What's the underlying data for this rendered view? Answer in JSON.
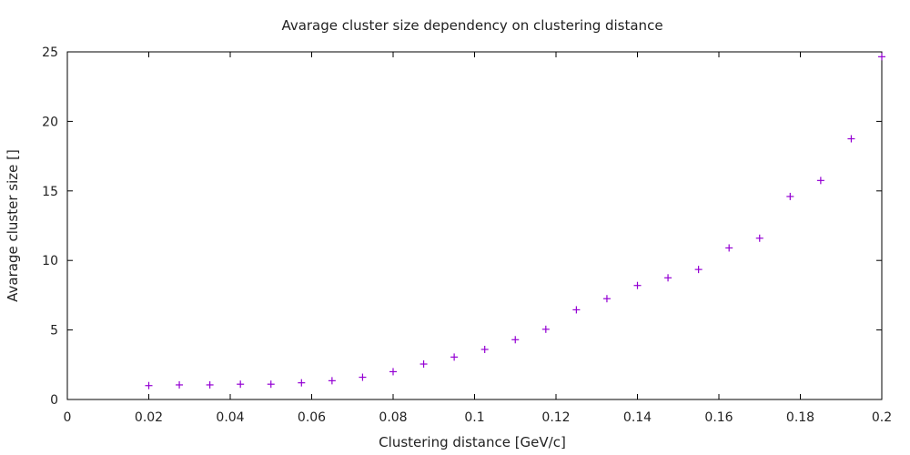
{
  "chart_data": {
    "type": "scatter",
    "title": "Avarage cluster size dependency on clustering distance",
    "xlabel": "Clustering distance [GeV/c]",
    "ylabel": "Avarage cluster size []",
    "xlim": [
      0,
      0.2
    ],
    "ylim": [
      0,
      25
    ],
    "x_ticks": [
      "0",
      "0.02",
      "0.04",
      "0.06",
      "0.08",
      "0.1",
      "0.12",
      "0.14",
      "0.16",
      "0.18",
      "0.2"
    ],
    "y_ticks": [
      "0",
      "5",
      "10",
      "15",
      "20",
      "25"
    ],
    "grid": false,
    "marker": "plus",
    "color": "#9400d3",
    "series": [
      {
        "x": [
          0.02,
          0.0275,
          0.035,
          0.0425,
          0.05,
          0.0575,
          0.065,
          0.0725,
          0.08,
          0.0875,
          0.095,
          0.1025,
          0.11,
          0.1175,
          0.125,
          0.1325,
          0.14,
          0.1475,
          0.155,
          0.1625,
          0.17,
          0.1775,
          0.185,
          0.1925,
          0.2
        ],
        "y": [
          1.0,
          1.05,
          1.05,
          1.1,
          1.1,
          1.2,
          1.35,
          1.6,
          2.0,
          2.55,
          3.05,
          3.6,
          4.3,
          5.05,
          6.45,
          7.25,
          8.2,
          8.75,
          9.35,
          10.9,
          11.6,
          14.6,
          15.75,
          18.75,
          24.65
        ]
      }
    ]
  }
}
